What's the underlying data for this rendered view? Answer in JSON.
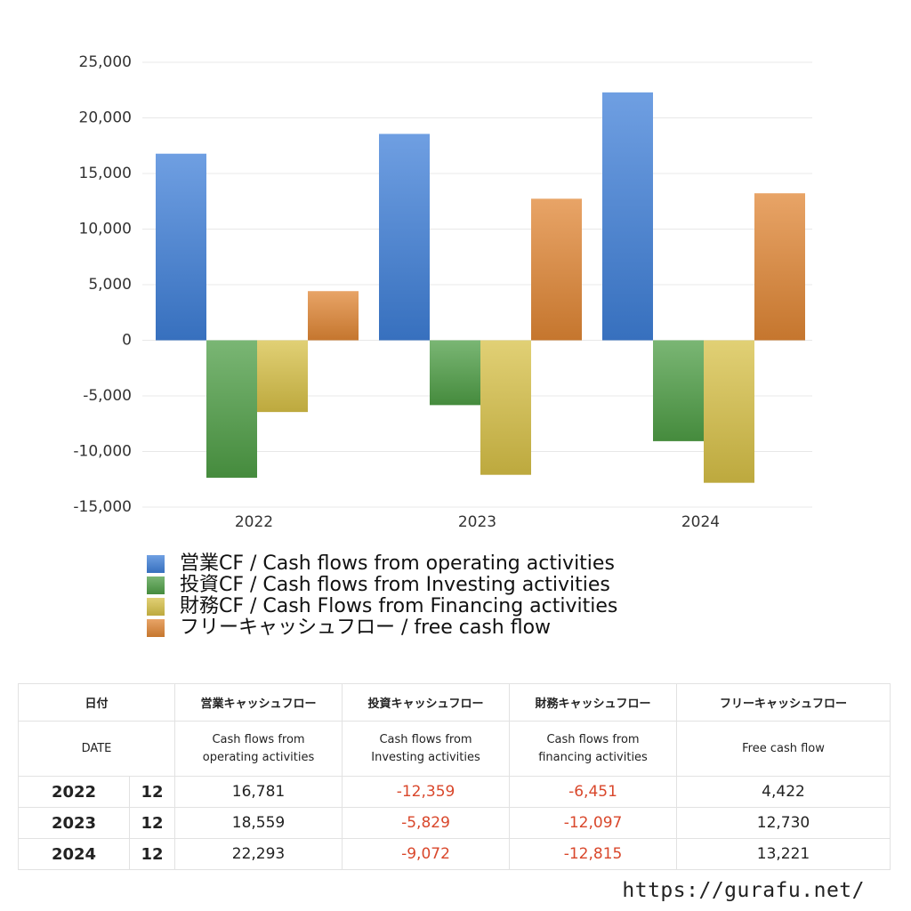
{
  "chart_data": {
    "type": "bar",
    "categories": [
      "2022",
      "2023",
      "2024"
    ],
    "series": [
      {
        "name": "営業CF / Cash flows from operating activities",
        "color": "#3f7fd8",
        "values": [
          16781,
          18559,
          22293
        ]
      },
      {
        "name": "投資CF / Cash flows from Investing activities",
        "color": "#4e9e45",
        "values": [
          -12359,
          -5829,
          -9072
        ]
      },
      {
        "name": "財務CF / Cash Flows from Financing activities",
        "color": "#d7c047",
        "values": [
          -6451,
          -12097,
          -12815
        ]
      },
      {
        "name": "フリーキャッシュフロー / free cash flow",
        "color": "#e08634",
        "values": [
          4422,
          12730,
          13221
        ]
      }
    ],
    "ylim": [
      -15000,
      25000
    ],
    "yticks": [
      {
        "value": -15000,
        "label": "-15,000"
      },
      {
        "value": -10000,
        "label": "-10,000"
      },
      {
        "value": -5000,
        "label": "-5,000"
      },
      0,
      {
        "value": 5000,
        "label": "5,000"
      },
      {
        "value": 10000,
        "label": "10,000"
      },
      {
        "value": 15000,
        "label": "15,000"
      },
      {
        "value": 20000,
        "label": "20,000"
      },
      {
        "value": 25000,
        "label": "25,000"
      }
    ],
    "grid": true
  },
  "table": {
    "header_ja": [
      "日付",
      "営業キャッシュフロー",
      "投資キャッシュフロー",
      "財務キャッシュフロー",
      "フリーキャッシュフロー"
    ],
    "header_en": [
      "DATE",
      "Cash flows from operating activities",
      "Cash flows from Investing activities",
      "Cash flows from financing activities",
      "Free cash flow"
    ],
    "rows": [
      [
        "2022",
        "12",
        "16,781",
        "-12,359",
        "-6,451",
        "4,422"
      ],
      [
        "2023",
        "12",
        "18,559",
        "-5,829",
        "-12,097",
        "12,730"
      ],
      [
        "2024",
        "12",
        "22,293",
        "-9,072",
        "-12,815",
        "13,221"
      ]
    ],
    "negative_color": "#d9472b"
  },
  "footer": "https://gurafu.net/"
}
